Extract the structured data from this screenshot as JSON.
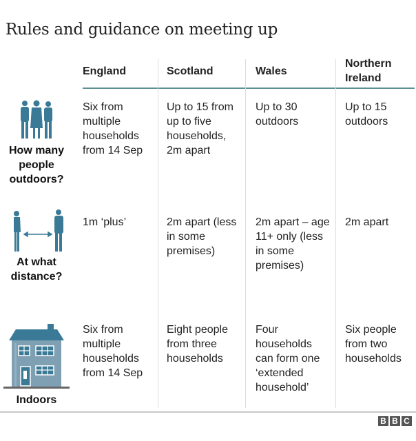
{
  "title": "Rules and guidance on meeting up",
  "columns": [
    "England",
    "Scotland",
    "Wales",
    "Northern Ireland"
  ],
  "rows": [
    {
      "label": "How many people outdoors?",
      "icon": "three-people-icon",
      "cells": [
        "Six from multiple households from 14 Sep",
        "Up to 15 from up to five households, 2m apart",
        "Up to 30 outdoors",
        "Up to 15 outdoors"
      ]
    },
    {
      "label": "At what distance?",
      "icon": "social-distance-icon",
      "cells": [
        "1m ‘plus’",
        "2m apart (less in some premises)",
        "2m apart – age 11+ only (less in some premises)",
        "2m apart"
      ]
    },
    {
      "label": "Indoors",
      "icon": "house-icon",
      "cells": [
        "Six from multiple households from 14 Sep",
        "Eight people from three households",
        "Four households can form one ‘extended household’",
        "Six people from two households"
      ]
    }
  ],
  "logo": "BBC",
  "colors": {
    "icon": "#3a7a96",
    "house_wall": "#7f9fb3",
    "rule": "#5e8f93"
  }
}
